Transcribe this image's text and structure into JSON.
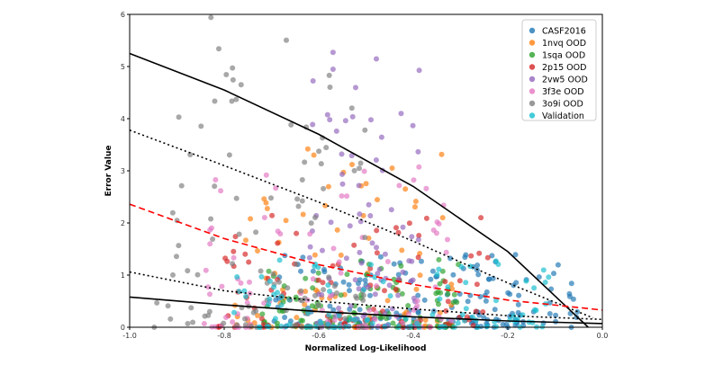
{
  "chart_data": {
    "type": "scatter",
    "title": "",
    "xlabel": "Normalized Log-Likelihood",
    "ylabel": "Error Value",
    "xlim": [
      -1.0,
      0.0
    ],
    "ylim": [
      0,
      6
    ],
    "x_ticks": [
      "-1.0",
      "-0.8",
      "-0.6",
      "-0.4",
      "-0.2",
      "0.0"
    ],
    "y_ticks": [
      "0",
      "1",
      "2",
      "3",
      "4",
      "5",
      "6"
    ],
    "grid": false,
    "legend_position": "top-right",
    "series": [
      {
        "name": "CASF2016",
        "color": "#1f77b4",
        "count": 180,
        "x_range": [
          -0.7,
          -0.05
        ],
        "y_range": [
          0,
          1.4
        ]
      },
      {
        "name": "1nvq OOD",
        "color": "#ff7f0e",
        "count": 90,
        "x_range": [
          -0.78,
          -0.3
        ],
        "y_range": [
          0,
          3.6
        ]
      },
      {
        "name": "1sqa OOD",
        "color": "#2ca02c",
        "count": 110,
        "x_range": [
          -0.72,
          -0.3
        ],
        "y_range": [
          0,
          1.3
        ]
      },
      {
        "name": "2p15 OOD",
        "color": "#d62728",
        "count": 90,
        "x_range": [
          -0.82,
          -0.24
        ],
        "y_range": [
          0,
          2.3
        ]
      },
      {
        "name": "2vw5 OOD",
        "color": "#9467bd",
        "count": 90,
        "x_range": [
          -0.62,
          -0.38
        ],
        "y_range": [
          0,
          5.6
        ]
      },
      {
        "name": "3f3e OOD",
        "color": "#e377c2",
        "count": 90,
        "x_range": [
          -0.85,
          -0.3
        ],
        "y_range": [
          0,
          3.2
        ]
      },
      {
        "name": "3o9i OOD",
        "color": "#7f7f7f",
        "count": 110,
        "x_range": [
          -0.95,
          -0.5
        ],
        "y_range": [
          0,
          6.0
        ]
      },
      {
        "name": "Validation",
        "color": "#17becf",
        "count": 100,
        "x_range": [
          -0.8,
          -0.1
        ],
        "y_range": [
          0,
          1.3
        ]
      }
    ],
    "reference_curves": [
      {
        "style": "solid",
        "color": "#000000",
        "points": [
          [
            -1.0,
            5.25
          ],
          [
            -0.8,
            4.55
          ],
          [
            -0.6,
            3.7
          ],
          [
            -0.4,
            2.7
          ],
          [
            -0.2,
            1.45
          ],
          [
            -0.03,
            0.0
          ]
        ]
      },
      {
        "style": "dotted",
        "color": "#000000",
        "points": [
          [
            -1.0,
            3.78
          ],
          [
            -0.8,
            3.1
          ],
          [
            -0.6,
            2.4
          ],
          [
            -0.4,
            1.65
          ],
          [
            -0.2,
            0.85
          ],
          [
            -0.02,
            0.18
          ]
        ]
      },
      {
        "style": "dashed",
        "color": "#ff0000",
        "points": [
          [
            -1.0,
            2.36
          ],
          [
            -0.8,
            1.7
          ],
          [
            -0.6,
            1.2
          ],
          [
            -0.4,
            0.82
          ],
          [
            -0.2,
            0.52
          ],
          [
            0.0,
            0.33
          ]
        ]
      },
      {
        "style": "dotted",
        "color": "#000000",
        "points": [
          [
            -1.0,
            1.06
          ],
          [
            -0.8,
            0.7
          ],
          [
            -0.6,
            0.5
          ],
          [
            -0.4,
            0.35
          ],
          [
            -0.2,
            0.22
          ],
          [
            0.0,
            0.15
          ]
        ]
      },
      {
        "style": "solid",
        "color": "#000000",
        "points": [
          [
            -1.0,
            0.58
          ],
          [
            -0.8,
            0.43
          ],
          [
            -0.6,
            0.3
          ],
          [
            -0.4,
            0.2
          ],
          [
            -0.2,
            0.12
          ],
          [
            0.0,
            0.07
          ]
        ]
      }
    ]
  }
}
